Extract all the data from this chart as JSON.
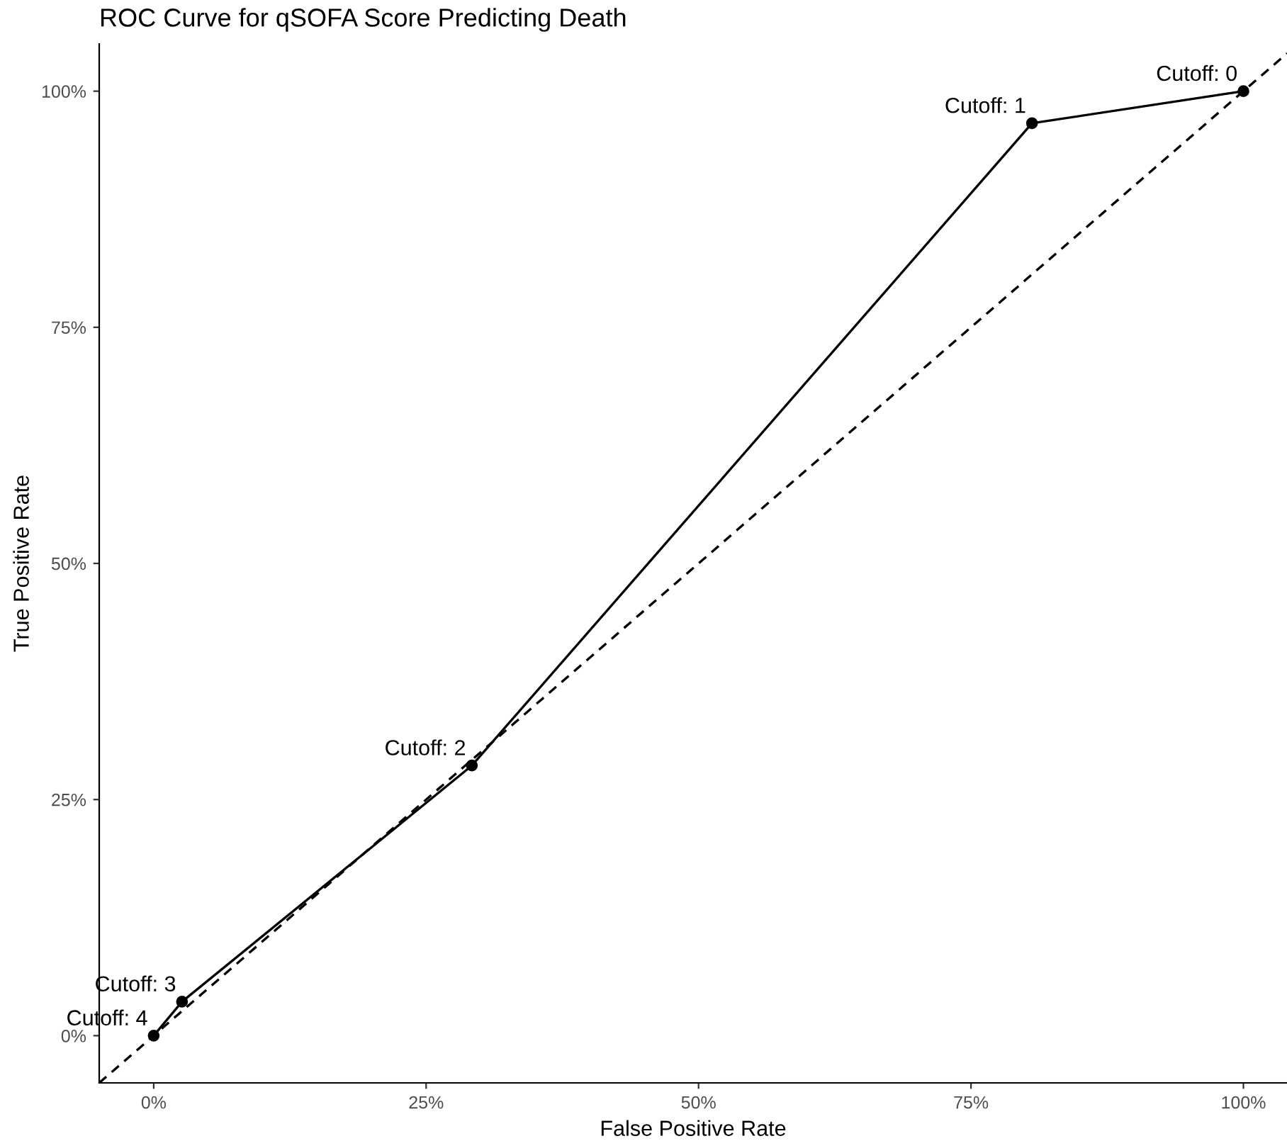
{
  "chart_data": {
    "type": "line",
    "title": "ROC Curve for qSOFA Score Predicting Death",
    "xlabel": "False Positive Rate",
    "ylabel": "True Positive Rate",
    "series": [
      {
        "color": "#000000",
        "x": [
          0,
          0.026,
          0.292,
          0.806,
          1
        ],
        "values": [
          0,
          0.036,
          0.286,
          0.966,
          1
        ],
        "marker": "circle",
        "line_style": "solid"
      },
      {
        "color": "#000000",
        "x": [
          -0.05,
          1.04
        ],
        "values": [
          -0.05,
          1.04
        ],
        "marker": "none",
        "line_style": "dashed"
      }
    ],
    "annotations": [
      {
        "text": "Cutoff: 4",
        "x": 0,
        "y": 0
      },
      {
        "text": "Cutoff: 3",
        "x": 0.026,
        "y": 0.036
      },
      {
        "text": "Cutoff: 2",
        "x": 0.292,
        "y": 0.286
      },
      {
        "text": "Cutoff: 1",
        "x": 0.806,
        "y": 0.966
      },
      {
        "text": "Cutoff: 0",
        "x": 1,
        "y": 1
      }
    ],
    "xlim": [
      -0.05,
      1.04
    ],
    "ylim": [
      -0.05,
      1.05
    ],
    "xticks": [
      {
        "value": 0,
        "label": "0%"
      },
      {
        "value": 0.25,
        "label": "25%"
      },
      {
        "value": 0.5,
        "label": "50%"
      },
      {
        "value": 0.75,
        "label": "75%"
      },
      {
        "value": 1,
        "label": "100%"
      }
    ],
    "yticks": [
      {
        "value": 0,
        "label": "0%"
      },
      {
        "value": 0.25,
        "label": "25%"
      },
      {
        "value": 0.5,
        "label": "50%"
      },
      {
        "value": 0.75,
        "label": "75%"
      },
      {
        "value": 1,
        "label": "100%"
      }
    ],
    "grid": false,
    "legend": false
  }
}
